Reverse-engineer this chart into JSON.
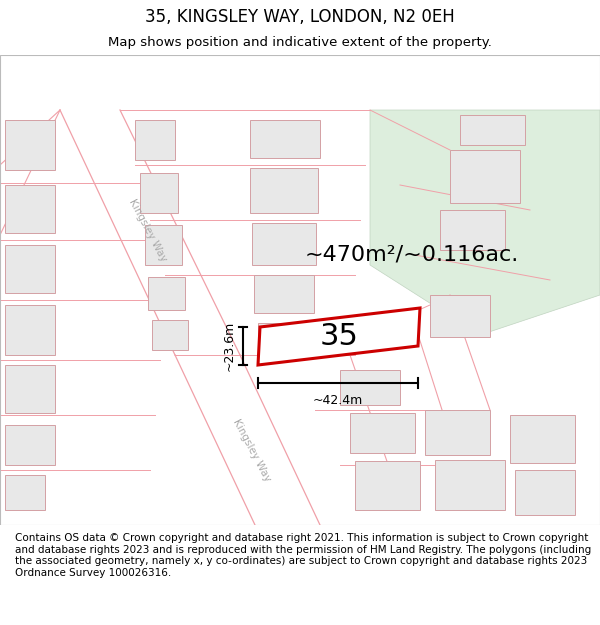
{
  "title": "35, KINGSLEY WAY, LONDON, N2 0EH",
  "subtitle": "Map shows position and indicative extent of the property.",
  "footer": "Contains OS data © Crown copyright and database right 2021. This information is subject to Crown copyright and database rights 2023 and is reproduced with the permission of HM Land Registry. The polygons (including the associated geometry, namely x, y co-ordinates) are subject to Crown copyright and database rights 2023 Ordnance Survey 100026316.",
  "area_label": "~470m²/~0.116ac.",
  "width_label": "~42.4m",
  "height_label": "~23.6m",
  "property_number": "35",
  "map_bg": "#f7f7f7",
  "road_line_color": "#f0a0a8",
  "building_fill": "#e8e8e8",
  "building_outline": "#d4a0a4",
  "green_fill": "#ddeedd",
  "green_outline": "#c0d4c0",
  "property_outline": "#cc0000",
  "title_fontsize": 12,
  "subtitle_fontsize": 9.5,
  "footer_fontsize": 7.5,
  "area_fontsize": 16,
  "num_fontsize": 22,
  "dim_fontsize": 9
}
